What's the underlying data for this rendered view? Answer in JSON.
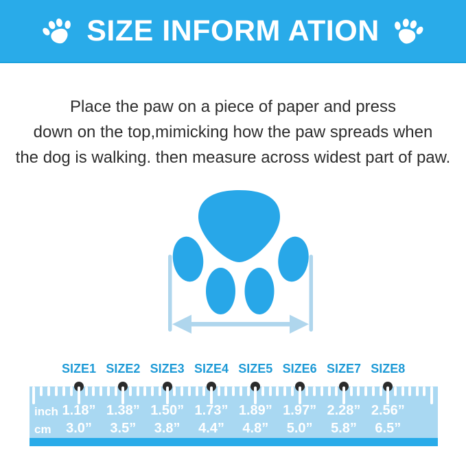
{
  "header": {
    "title": "SIZE INFORM ATION",
    "left_icon": "paw-icon",
    "right_icon": "paw-icon"
  },
  "instructions": {
    "line1": "Place the paw on a piece of paper and press",
    "line2": "down on the top,mimicking how the paw spreads when",
    "line3": "the dog is walking. then measure across widest part of paw."
  },
  "diagram": {
    "description": "paw-print-with-width-measurement-arrow"
  },
  "ruler": {
    "row_labels": {
      "inch": "inch",
      "cm": "cm"
    },
    "sizes": [
      {
        "label": "SIZE1",
        "inch": "1.18”",
        "cm": "3.0”"
      },
      {
        "label": "SIZE2",
        "inch": "1.38”",
        "cm": "3.5”"
      },
      {
        "label": "SIZE3",
        "inch": "1.50”",
        "cm": "3.8”"
      },
      {
        "label": "SIZE4",
        "inch": "1.73”",
        "cm": "4.4”"
      },
      {
        "label": "SIZE5",
        "inch": "1.89”",
        "cm": "4.8”"
      },
      {
        "label": "SIZE6",
        "inch": "1.97”",
        "cm": "5.0”"
      },
      {
        "label": "SIZE7",
        "inch": "2.28”",
        "cm": "5.8”"
      },
      {
        "label": "SIZE8",
        "inch": "2.56”",
        "cm": "6.5”"
      }
    ]
  },
  "colors": {
    "banner": "#29ABE9",
    "paw": "#28A7E8",
    "arrow": "#AFD6ED",
    "ruler_body": "#A9D8F2",
    "ruler_stripe": "#29ABE9",
    "size_label": "#1E9AD6",
    "dot": "#2B2B2B",
    "text": "#2D2D2D"
  }
}
